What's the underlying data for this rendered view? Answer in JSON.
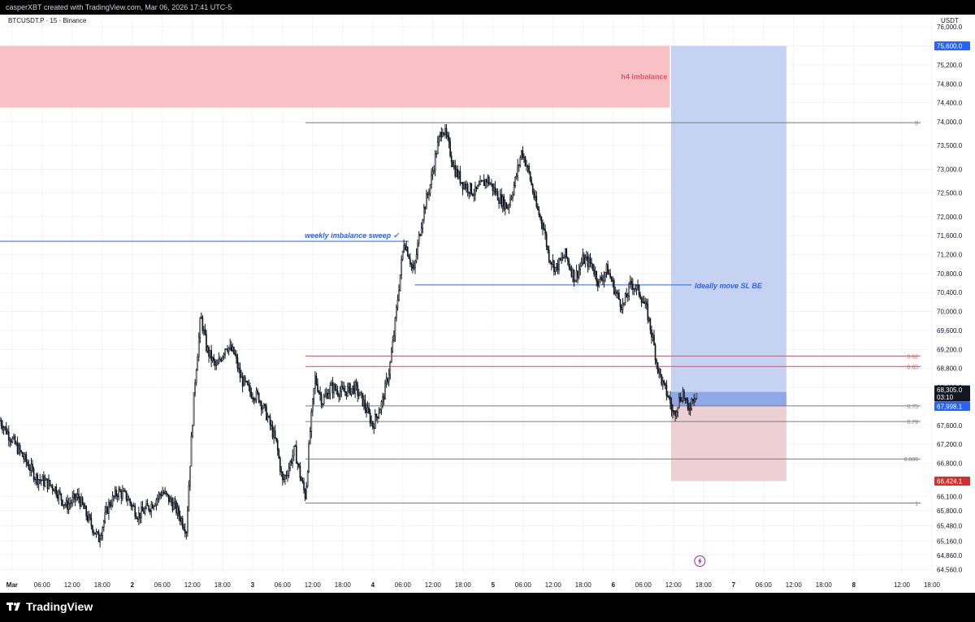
{
  "header": {
    "attribution": "casperXBT created with TradingView.com, Mar 06, 2026 17:41 UTC-5"
  },
  "chart_header": {
    "symbol_line": "BTCUSDT.P · 15 · Binance",
    "currency": "USDT"
  },
  "footer": {
    "brand": "TradingView"
  },
  "chart_data": {
    "type": "candlestick",
    "symbol": "BTCUSDT.P",
    "interval": "15",
    "exchange": "Binance",
    "currency": "USDT",
    "ylim": [
      64480,
      76260
    ],
    "y_ticks": [
      76000,
      75600,
      75200,
      74800,
      74400,
      74000,
      73500,
      73000,
      72500,
      72000,
      71600,
      71200,
      70800,
      70400,
      70000,
      69600,
      69200,
      68800,
      68400,
      67600,
      67200,
      66800,
      66100,
      65800,
      65480,
      65160,
      64860,
      64560
    ],
    "y_tick_labels": [
      "76,000.0",
      "75,600.0",
      "75,200.0",
      "74,800.0",
      "74,400.0",
      "74,000.0",
      "73,500.0",
      "73,000.0",
      "72,500.0",
      "72,000.0",
      "71,600.0",
      "71,200.0",
      "70,800.0",
      "70,400.0",
      "70,000.0",
      "69,600.0",
      "69,200.0",
      "68,800.0",
      "68,400.0",
      "67,600.0",
      "67,200.0",
      "66,800.0",
      "66,100.0",
      "65,800.0",
      "65,480.0",
      "65,160.0",
      "64,860.0",
      "64,560.0"
    ],
    "xlim": [
      -0.1,
      7.65
    ],
    "x_ticks": [
      {
        "t": 0.0,
        "label": "Mar",
        "bold": true
      },
      {
        "t": 0.25,
        "label": "06:00"
      },
      {
        "t": 0.5,
        "label": "12:00"
      },
      {
        "t": 0.75,
        "label": "18:00"
      },
      {
        "t": 1.0,
        "label": "2",
        "bold": true
      },
      {
        "t": 1.25,
        "label": "06:00"
      },
      {
        "t": 1.5,
        "label": "12:00"
      },
      {
        "t": 1.75,
        "label": "18:00"
      },
      {
        "t": 2.0,
        "label": "3",
        "bold": true
      },
      {
        "t": 2.25,
        "label": "06:00"
      },
      {
        "t": 2.5,
        "label": "12:00"
      },
      {
        "t": 2.75,
        "label": "18:00"
      },
      {
        "t": 3.0,
        "label": "4",
        "bold": true
      },
      {
        "t": 3.25,
        "label": "06:00"
      },
      {
        "t": 3.5,
        "label": "12:00"
      },
      {
        "t": 3.75,
        "label": "18:00"
      },
      {
        "t": 4.0,
        "label": "5",
        "bold": true
      },
      {
        "t": 4.25,
        "label": "06:00"
      },
      {
        "t": 4.5,
        "label": "12:00"
      },
      {
        "t": 4.75,
        "label": "18:00"
      },
      {
        "t": 5.0,
        "label": "6",
        "bold": true
      },
      {
        "t": 5.25,
        "label": "06:00"
      },
      {
        "t": 5.5,
        "label": "12:00"
      },
      {
        "t": 5.75,
        "label": "18:00"
      },
      {
        "t": 6.0,
        "label": "7",
        "bold": true
      },
      {
        "t": 6.25,
        "label": "06:00"
      },
      {
        "t": 6.5,
        "label": "12:00"
      },
      {
        "t": 6.75,
        "label": "18:00"
      },
      {
        "t": 7.0,
        "label": "8",
        "bold": true
      },
      {
        "t": 7.4,
        "label": "12:00"
      },
      {
        "t": 7.65,
        "label": "18:00"
      }
    ],
    "price_path": [
      [
        -0.1,
        67700
      ],
      [
        0.05,
        67100
      ],
      [
        0.2,
        66500
      ],
      [
        0.35,
        66300
      ],
      [
        0.45,
        65900
      ],
      [
        0.55,
        66100
      ],
      [
        0.62,
        65700
      ],
      [
        0.72,
        65200
      ],
      [
        0.8,
        65900
      ],
      [
        0.88,
        66200
      ],
      [
        0.95,
        66100
      ],
      [
        1.05,
        65700
      ],
      [
        1.15,
        65900
      ],
      [
        1.25,
        66200
      ],
      [
        1.35,
        65900
      ],
      [
        1.45,
        65400
      ],
      [
        1.48,
        66800
      ],
      [
        1.52,
        68500
      ],
      [
        1.57,
        69900
      ],
      [
        1.62,
        69200
      ],
      [
        1.7,
        68800
      ],
      [
        1.78,
        69300
      ],
      [
        1.85,
        69100
      ],
      [
        1.9,
        68600
      ],
      [
        1.98,
        68300
      ],
      [
        2.05,
        68200
      ],
      [
        2.12,
        67800
      ],
      [
        2.2,
        67200
      ],
      [
        2.25,
        66400
      ],
      [
        2.3,
        66700
      ],
      [
        2.35,
        67100
      ],
      [
        2.4,
        66500
      ],
      [
        2.44,
        66100
      ],
      [
        2.48,
        67500
      ],
      [
        2.52,
        68600
      ],
      [
        2.58,
        68100
      ],
      [
        2.65,
        68400
      ],
      [
        2.75,
        68300
      ],
      [
        2.85,
        68400
      ],
      [
        2.92,
        68100
      ],
      [
        3.0,
        67600
      ],
      [
        3.08,
        68100
      ],
      [
        3.14,
        68800
      ],
      [
        3.18,
        69600
      ],
      [
        3.22,
        70600
      ],
      [
        3.26,
        71500
      ],
      [
        3.3,
        71200
      ],
      [
        3.34,
        70800
      ],
      [
        3.38,
        71500
      ],
      [
        3.42,
        72100
      ],
      [
        3.48,
        72700
      ],
      [
        3.53,
        73400
      ],
      [
        3.58,
        73900
      ],
      [
        3.62,
        73600
      ],
      [
        3.68,
        73000
      ],
      [
        3.75,
        72700
      ],
      [
        3.85,
        72500
      ],
      [
        3.95,
        72800
      ],
      [
        4.05,
        72400
      ],
      [
        4.12,
        72200
      ],
      [
        4.18,
        72700
      ],
      [
        4.24,
        73400
      ],
      [
        4.3,
        72900
      ],
      [
        4.36,
        72200
      ],
      [
        4.42,
        71800
      ],
      [
        4.46,
        71200
      ],
      [
        4.52,
        70900
      ],
      [
        4.6,
        71200
      ],
      [
        4.68,
        70700
      ],
      [
        4.75,
        71100
      ],
      [
        4.82,
        71000
      ],
      [
        4.88,
        70600
      ],
      [
        4.95,
        70900
      ],
      [
        5.02,
        70400
      ],
      [
        5.08,
        70100
      ],
      [
        5.15,
        70600
      ],
      [
        5.22,
        70400
      ],
      [
        5.28,
        70000
      ],
      [
        5.33,
        69400
      ],
      [
        5.37,
        68800
      ],
      [
        5.42,
        68400
      ],
      [
        5.46,
        68200
      ],
      [
        5.5,
        67800
      ],
      [
        5.54,
        68100
      ],
      [
        5.58,
        68300
      ],
      [
        5.62,
        67900
      ],
      [
        5.66,
        68200
      ],
      [
        5.7,
        68300
      ]
    ],
    "zones": [
      {
        "name": "h4 imbalance",
        "kind": "supply",
        "y_top": 75600,
        "y_bottom": 74300,
        "t_start": -0.1,
        "t_end": 5.47,
        "color": "#f7c1c6",
        "label_color": "#e05560"
      },
      {
        "name": "long target",
        "kind": "target",
        "y_top": 75600,
        "y_bottom": 68305,
        "t_start": 5.48,
        "t_end": 6.44,
        "color": "#c5d2f2"
      },
      {
        "name": "long entry",
        "kind": "entry",
        "y_top": 68305,
        "y_bottom": 68000,
        "t_start": 5.48,
        "t_end": 6.44,
        "color": "#8fa9e6"
      },
      {
        "name": "long stop",
        "kind": "stop",
        "y_top": 68000,
        "y_bottom": 66424.1,
        "t_start": 5.48,
        "t_end": 6.44,
        "color": "#ecd0d3"
      }
    ],
    "fib_levels": [
      {
        "level": "0",
        "price": 73980,
        "color": "#787b86"
      },
      {
        "level": "0.62",
        "price": 69060,
        "color": "#e05560"
      },
      {
        "level": "0.65",
        "price": 68840,
        "color": "#e05560"
      },
      {
        "level": "0.75",
        "price": 68010,
        "color": "#787b86"
      },
      {
        "level": "0.79",
        "price": 67680,
        "color": "#787b86"
      },
      {
        "level": "0.886",
        "price": 66890,
        "color": "#787b86"
      },
      {
        "level": "1",
        "price": 65960,
        "color": "#787b86"
      }
    ],
    "fib_t_start": 2.44,
    "fib_t_end": 7.65,
    "annotations": [
      {
        "text": "weekly imbalance sweep ✓",
        "price": 71480,
        "line_t_start": -0.1,
        "line_t_end": 3.3,
        "color": "#2962ff"
      },
      {
        "text": "Ideally move SL BE",
        "price": 70560,
        "line_t_start": 3.35,
        "line_t_end": 5.65,
        "color": "#2962ff"
      }
    ],
    "price_tags": [
      {
        "value": "75,600.0",
        "price": 75600,
        "bg": "#2962ff",
        "fg": "#ffffff"
      },
      {
        "value": "68,305.0",
        "sub": "03:10",
        "price": 68305,
        "bg": "#131722",
        "fg": "#ffffff"
      },
      {
        "value": "67,998.1",
        "price": 67998.1,
        "bg": "#2962ff",
        "fg": "#ffffff"
      },
      {
        "value": "66,424.1",
        "price": 66424.1,
        "bg": "#d32f2f",
        "fg": "#ffffff"
      }
    ],
    "colors": {
      "candle": "#131722",
      "grid": "#f0f3fa",
      "panel": "#ffffff"
    }
  }
}
